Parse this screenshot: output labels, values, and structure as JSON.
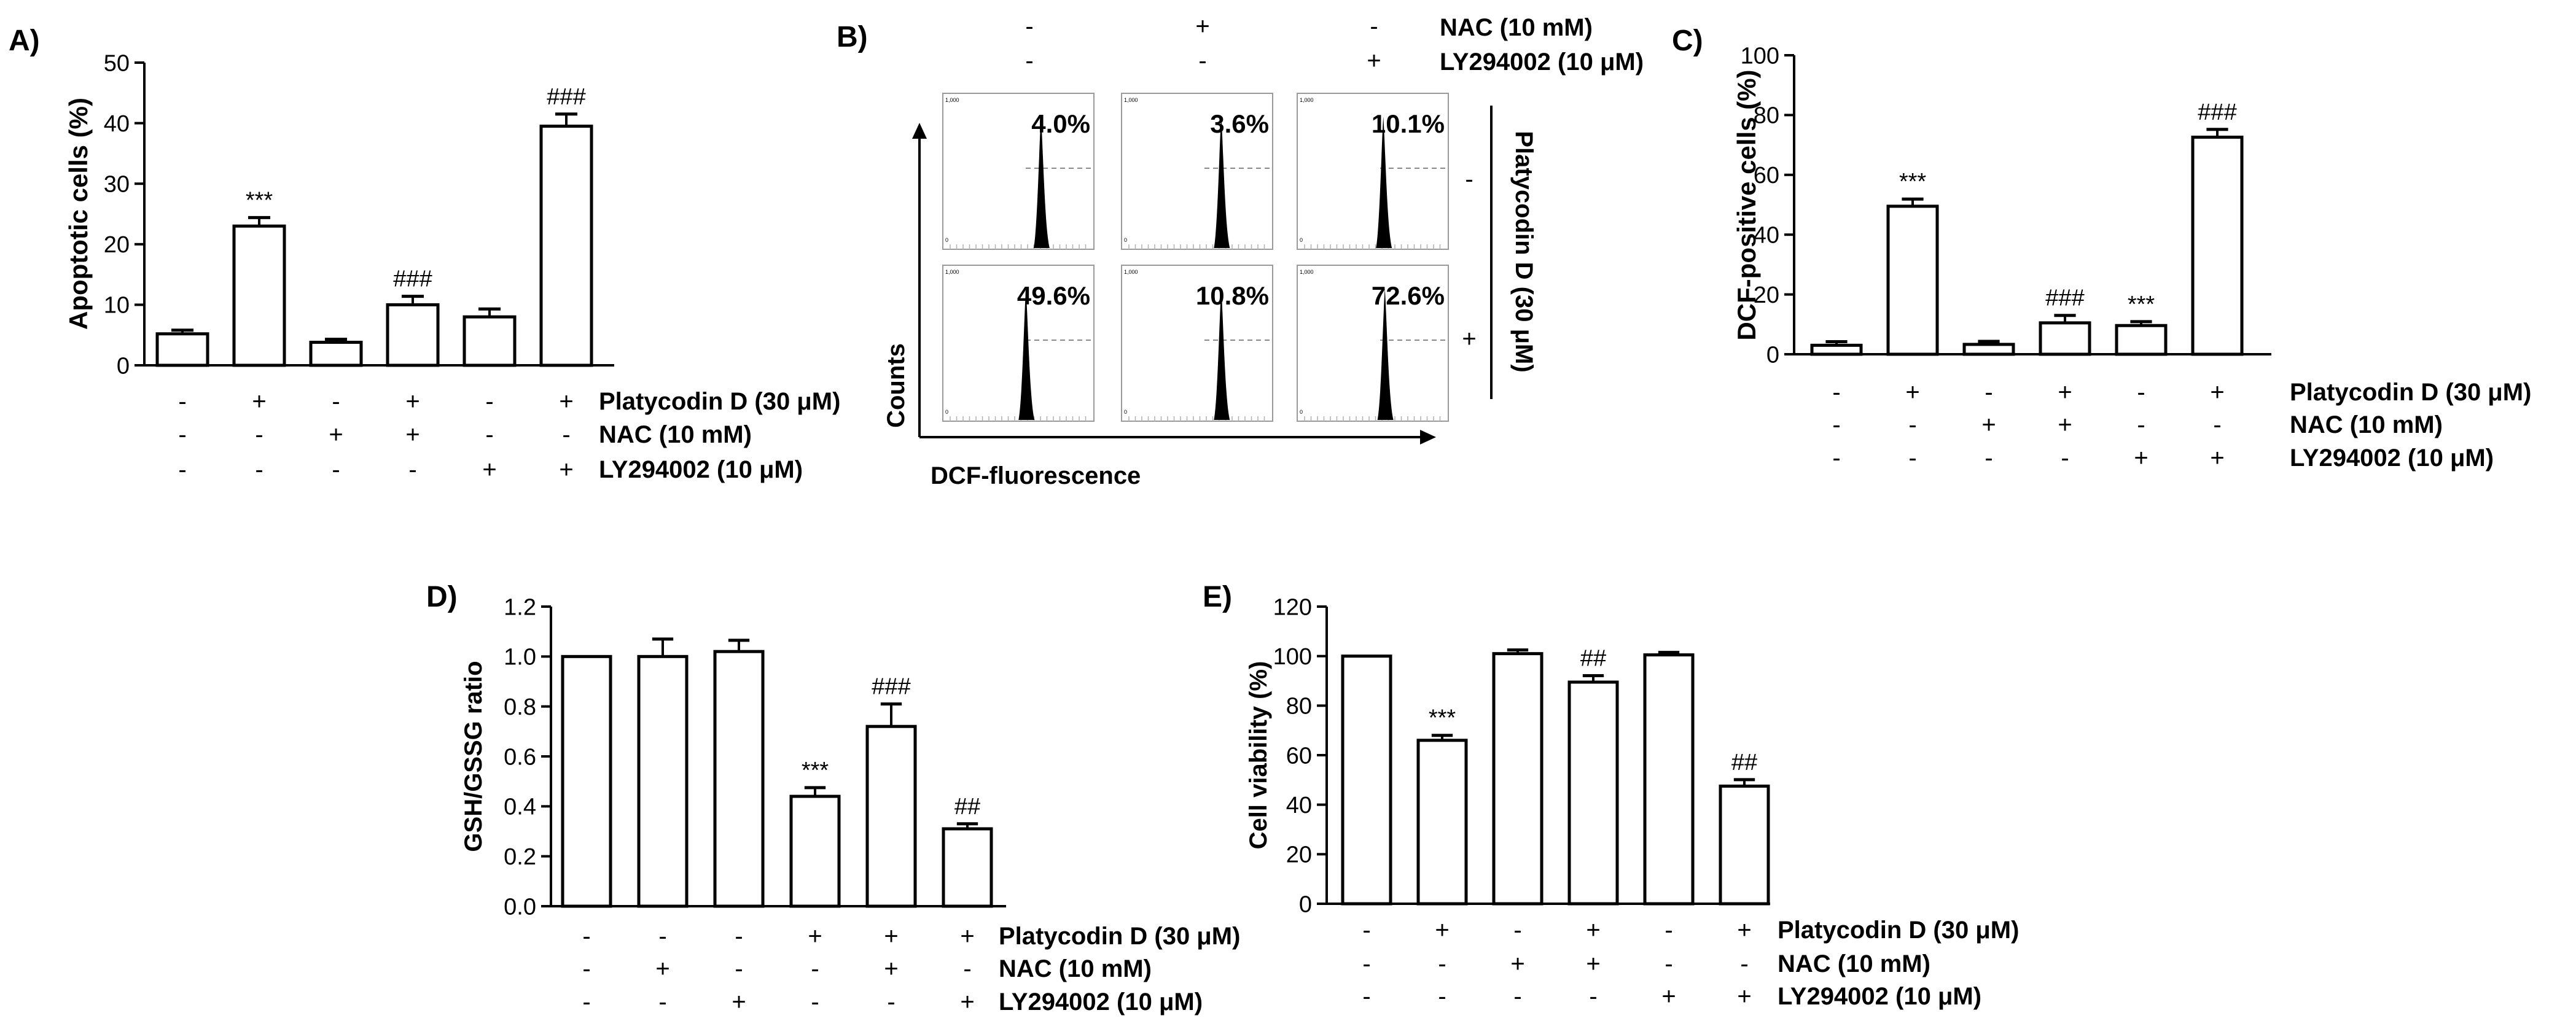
{
  "panels": {
    "A": {
      "letter": "A)"
    },
    "B": {
      "letter": "B)"
    },
    "C": {
      "letter": "C)"
    },
    "D": {
      "letter": "D)"
    },
    "E": {
      "letter": "E)"
    }
  },
  "treatment_labels": {
    "platycodin": "Platycodin D (30 μM)",
    "nac": "NAC (10 mM)",
    "ly": "LY294002 (10 μM)"
  },
  "flow": {
    "header_rows": [
      {
        "signs": [
          "-",
          "+",
          "-"
        ],
        "label": "NAC (10 mM)"
      },
      {
        "signs": [
          "-",
          "-",
          "+"
        ],
        "label": "LY294002 (10 μM)"
      }
    ],
    "row_signs": [
      "-",
      "+"
    ],
    "side_label": "Platycodin D (30 μM)",
    "ylabel": "Counts",
    "xlabel": "DCF-fluorescence",
    "percentages": [
      [
        "4.0%",
        "3.6%",
        "10.1%"
      ],
      [
        "49.6%",
        "10.8%",
        "72.6%"
      ]
    ],
    "peak_fraction": [
      [
        0.65,
        0.66,
        0.57
      ],
      [
        0.55,
        0.66,
        0.58
      ]
    ],
    "axis_tick_text": [
      "0",
      "1,000"
    ]
  },
  "chart_data": [
    {
      "id": "A",
      "type": "bar",
      "ylabel": "Apoptotic cells (%)",
      "ylim": [
        0,
        50
      ],
      "yticks": [
        0,
        10,
        20,
        30,
        40,
        50
      ],
      "values": [
        5.2,
        23.0,
        3.8,
        10.0,
        8.0,
        39.5
      ],
      "errors": [
        0.6,
        1.4,
        0.5,
        1.4,
        1.3,
        2.0
      ],
      "annotations": [
        "",
        "***",
        "",
        "###",
        "",
        "###"
      ],
      "rows": [
        {
          "signs": [
            "-",
            "+",
            "-",
            "+",
            "-",
            "+"
          ],
          "label": "Platycodin D (30 μM)"
        },
        {
          "signs": [
            "-",
            "-",
            "+",
            "+",
            "-",
            "-"
          ],
          "label": "NAC (10 mM)"
        },
        {
          "signs": [
            "-",
            "-",
            "-",
            "-",
            "+",
            "+"
          ],
          "label": "LY294002 (10 μM)"
        }
      ]
    },
    {
      "id": "C",
      "type": "bar",
      "ylabel": "DCF-positive cells (%)",
      "ylim": [
        0,
        100
      ],
      "yticks": [
        0,
        20,
        40,
        60,
        80,
        100
      ],
      "values": [
        3.0,
        49.5,
        3.3,
        10.5,
        9.6,
        72.6
      ],
      "errors": [
        1.2,
        2.4,
        1.0,
        2.5,
        1.3,
        2.6
      ],
      "annotations": [
        "",
        "***",
        "",
        "###",
        "***",
        "###"
      ],
      "rows": [
        {
          "signs": [
            "-",
            "+",
            "-",
            "+",
            "-",
            "+"
          ],
          "label": "Platycodin D (30 μM)"
        },
        {
          "signs": [
            "-",
            "-",
            "+",
            "+",
            "-",
            "-"
          ],
          "label": "NAC (10 mM)"
        },
        {
          "signs": [
            "-",
            "-",
            "-",
            "-",
            "+",
            "+"
          ],
          "label": "LY294002 (10 μM)"
        }
      ]
    },
    {
      "id": "D",
      "type": "bar",
      "ylabel": "GSH/GSSG ratio",
      "ylim": [
        0,
        1.2
      ],
      "yticks": [
        "0.0",
        "0.2",
        "0.4",
        "0.6",
        "0.8",
        "1.0",
        "1.2"
      ],
      "values": [
        1.0,
        1.0,
        1.02,
        0.44,
        0.72,
        0.31
      ],
      "errors": [
        0.0,
        0.07,
        0.045,
        0.035,
        0.09,
        0.02
      ],
      "annotations": [
        "",
        "",
        "",
        "***",
        "###",
        "##"
      ],
      "rows": [
        {
          "signs": [
            "-",
            "-",
            "-",
            "+",
            "+",
            "+"
          ],
          "label": "Platycodin D (30 μM)"
        },
        {
          "signs": [
            "-",
            "+",
            "-",
            "-",
            "+",
            "-"
          ],
          "label": "NAC (10 mM)"
        },
        {
          "signs": [
            "-",
            "-",
            "+",
            "-",
            "-",
            "+"
          ],
          "label": "LY294002 (10 μM)"
        }
      ]
    },
    {
      "id": "E",
      "type": "bar",
      "ylabel": "Cell viability (%)",
      "ylim": [
        0,
        120
      ],
      "yticks": [
        0,
        20,
        40,
        60,
        80,
        100,
        120
      ],
      "values": [
        100,
        66,
        101,
        89.5,
        100.5,
        47.5
      ],
      "errors": [
        0,
        2.0,
        1.5,
        2.6,
        1.0,
        2.6
      ],
      "annotations": [
        "",
        "***",
        "",
        "##",
        "",
        "##"
      ],
      "rows": [
        {
          "signs": [
            "-",
            "+",
            "-",
            "+",
            "-",
            "+"
          ],
          "label": "Platycodin D (30 μM)"
        },
        {
          "signs": [
            "-",
            "-",
            "+",
            "+",
            "-",
            "-"
          ],
          "label": "NAC (10 mM)"
        },
        {
          "signs": [
            "-",
            "-",
            "-",
            "-",
            "+",
            "+"
          ],
          "label": "LY294002 (10 μM)"
        }
      ]
    }
  ]
}
